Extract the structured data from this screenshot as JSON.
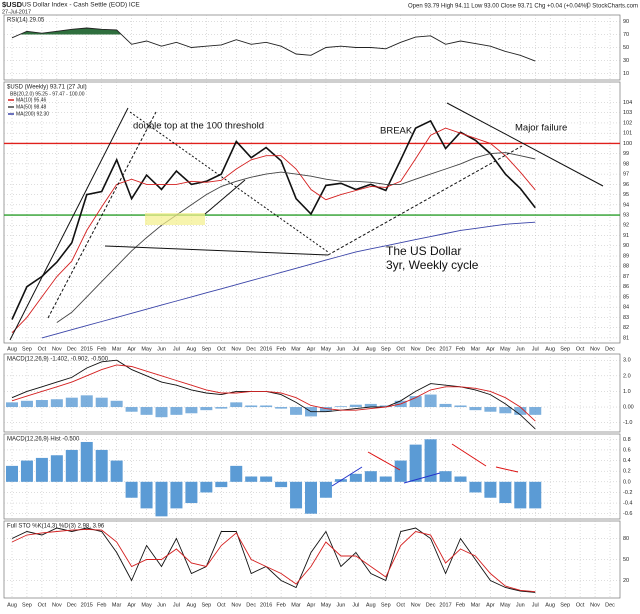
{
  "header": {
    "symbol": "$USD",
    "name": "US Dollar Index - Cash Settle (EOD) ICE",
    "date": "27-Jul-2017",
    "quote": "Open 93.79 High 94.11 Low 93.00 Close 93.71 Chg +0.04 (+0.04%)",
    "credit": "© StockCharts.com"
  },
  "chart_data": [
    {
      "type": "line",
      "title": "RSI(14) 29.05",
      "ylim": [
        0,
        100
      ],
      "yticks": [
        10,
        30,
        50,
        70,
        90
      ],
      "fill_above": 70,
      "fill_color": "#2f6f3e",
      "series": [
        {
          "color": "#222",
          "values": [
            65,
            75,
            72,
            75,
            78,
            80,
            78,
            77,
            55,
            60,
            52,
            58,
            50,
            52,
            54,
            62,
            55,
            58,
            52,
            40,
            38,
            50,
            52,
            50,
            50,
            48,
            58,
            66,
            68,
            55,
            60,
            56,
            52,
            44,
            38,
            29.05,
            null,
            null,
            null,
            null,
            null
          ]
        }
      ]
    },
    {
      "type": "line",
      "title": "$USD (Weekly) 93.71 (27 Jul)",
      "bb_label": "BB(20,2.0) 95.25 - 97.47 - 100.00",
      "ylim": [
        80.5,
        106
      ],
      "yticks": [
        81,
        82,
        83,
        84,
        85,
        86,
        87,
        88,
        89,
        90,
        91,
        92,
        93,
        94,
        95,
        96,
        97,
        98,
        99,
        100,
        101,
        102,
        103,
        104
      ],
      "categories": [
        "Aug",
        "Sep",
        "Oct",
        "Nov",
        "Dec",
        "2015",
        "Feb",
        "Mar",
        "Apr",
        "May",
        "Jun",
        "Jul",
        "Aug",
        "Sep",
        "Oct",
        "Nov",
        "Dec",
        "2016",
        "Feb",
        "Mar",
        "Apr",
        "May",
        "Jun",
        "Jul",
        "Aug",
        "Sep",
        "Oct",
        "Nov",
        "Dec",
        "2017",
        "Feb",
        "Mar",
        "Apr",
        "May",
        "Jun",
        "Jul",
        "Aug",
        "Sep",
        "Oct",
        "Nov",
        "Dec"
      ],
      "hlines": [
        {
          "value": 100,
          "color": "#e0201c"
        },
        {
          "value": 93,
          "color": "#2a9d2a"
        }
      ],
      "annotations": [
        "double top at the 100 threshold",
        "BREAK",
        "Major failure",
        "The US Dollar",
        "3yr, Weekly cycle"
      ],
      "series": [
        {
          "color": "#111",
          "values": [
            82.8,
            86,
            87,
            88.4,
            90.3,
            95,
            95.3,
            98.4,
            94.6,
            96.9,
            95.5,
            97.3,
            96,
            96.3,
            97,
            100.2,
            98.6,
            99.6,
            98.3,
            94.6,
            93.1,
            95.9,
            96.1,
            95.5,
            96,
            95.4,
            98.4,
            101.5,
            102.2,
            99.5,
            101.1,
            100.3,
            99,
            97,
            95.6,
            93.71,
            null,
            null,
            null,
            null,
            null
          ]
        },
        {
          "name": "MA(10) 95.46",
          "color": "#d42020",
          "values": [
            81.5,
            83,
            85,
            87,
            88.5,
            91.5,
            93.8,
            96,
            96.5,
            96,
            96,
            96,
            96.3,
            96.2,
            96.4,
            97.5,
            98.4,
            98.8,
            98.8,
            97.5,
            95.5,
            94.5,
            95,
            95.4,
            95.8,
            95.7,
            96.3,
            98.5,
            100.8,
            101.5,
            101,
            100.5,
            100,
            98.8,
            97.2,
            95.46,
            null,
            null,
            null,
            null,
            null
          ]
        },
        {
          "name": "MA(50) 98.48",
          "color": "#444",
          "values": [
            null,
            null,
            null,
            82.5,
            83.5,
            85,
            86.5,
            88,
            89.5,
            90.8,
            92,
            93,
            94,
            95,
            95.8,
            96.3,
            96.7,
            97,
            97.2,
            97,
            96.8,
            96.5,
            96.3,
            96.3,
            96.2,
            96,
            96,
            96.5,
            97,
            97.5,
            98,
            98.6,
            99,
            99.1,
            98.8,
            98.48,
            null,
            null,
            null,
            null,
            null
          ]
        },
        {
          "name": "MA(200) 92.30",
          "color": "#3a44a8",
          "values": [
            null,
            null,
            81,
            81.4,
            81.8,
            82.2,
            82.6,
            83,
            83.4,
            83.8,
            84.2,
            84.6,
            85,
            85.4,
            85.8,
            86.2,
            86.6,
            87,
            87.4,
            87.8,
            88.2,
            88.6,
            89,
            89.4,
            89.7,
            90,
            90.3,
            90.6,
            90.9,
            91.2,
            91.5,
            91.7,
            91.9,
            92.1,
            92.2,
            92.3,
            null,
            null,
            null,
            null,
            null
          ]
        }
      ]
    },
    {
      "type": "line",
      "title": "MACD(12,26,9) -1.402, -0.902, -0.500",
      "ylim": [
        -1.6,
        3.4
      ],
      "yticks": [
        {
          "value": 3,
          "label": "3.0"
        },
        {
          "value": 2,
          "label": "2.0"
        },
        {
          "value": 1,
          "label": "1.0"
        },
        {
          "value": 0,
          "label": "0.00"
        },
        {
          "value": -1,
          "label": "-1.0"
        }
      ],
      "series": [
        {
          "color": "#111",
          "values": [
            0.6,
            1.0,
            1.3,
            1.6,
            1.9,
            2.5,
            2.9,
            3.0,
            2.4,
            2.0,
            1.6,
            1.4,
            1.1,
            0.9,
            0.8,
            1.0,
            1.0,
            1.0,
            0.8,
            0.3,
            -0.3,
            -0.3,
            -0.2,
            -0.1,
            0.0,
            0.0,
            0.4,
            1.0,
            1.5,
            1.4,
            1.3,
            1.1,
            0.8,
            0.2,
            -0.5,
            -1.402,
            null,
            null,
            null,
            null,
            null
          ]
        },
        {
          "color": "#d42020",
          "values": [
            0.4,
            0.7,
            1.0,
            1.3,
            1.6,
            2.0,
            2.4,
            2.7,
            2.6,
            2.3,
            2.0,
            1.7,
            1.4,
            1.1,
            0.9,
            0.9,
            1.0,
            1.0,
            0.9,
            0.6,
            0.1,
            -0.1,
            -0.2,
            -0.2,
            -0.1,
            0.0,
            0.2,
            0.6,
            1.1,
            1.3,
            1.3,
            1.2,
            1.0,
            0.6,
            0.0,
            -0.902,
            null,
            null,
            null,
            null,
            null
          ]
        }
      ]
    },
    {
      "type": "bar",
      "title": "MACD(12,26,9) Hist -0.500",
      "ylim": [
        -0.7,
        0.9
      ],
      "yticks": [
        0.8,
        0.6,
        0.4,
        0.2,
        {
          "value": 0,
          "label": "0.0"
        },
        -0.2,
        -0.4,
        -0.6
      ],
      "series": [
        {
          "color": "#5b9bd5",
          "values": [
            0.3,
            0.4,
            0.45,
            0.5,
            0.6,
            0.75,
            0.6,
            0.4,
            -0.3,
            -0.5,
            -0.65,
            -0.5,
            -0.4,
            -0.2,
            -0.1,
            0.3,
            0.1,
            0.1,
            -0.1,
            -0.5,
            -0.6,
            -0.3,
            0.05,
            0.15,
            0.2,
            0.1,
            0.4,
            0.7,
            0.8,
            0.2,
            0.1,
            -0.2,
            -0.3,
            -0.4,
            -0.5,
            -0.5,
            null,
            null,
            null,
            null,
            null
          ]
        }
      ]
    },
    {
      "type": "line",
      "title": "Full STO %K(14,3) %D(3) 2.98, 3.96",
      "ylim": [
        -5,
        105
      ],
      "yticks": [
        20,
        50,
        80
      ],
      "categories": [
        "Aug",
        "Sep",
        "Oct",
        "Nov",
        "Dec",
        "2015",
        "Feb",
        "Mar",
        "Apr",
        "May",
        "Jun",
        "Jul",
        "Aug",
        "Sep",
        "Oct",
        "Nov",
        "Dec",
        "2016",
        "Feb",
        "Mar",
        "Apr",
        "May",
        "Jun",
        "Jul",
        "Aug",
        "Sep",
        "Oct",
        "Nov",
        "Dec",
        "2017",
        "Feb",
        "Mar",
        "Apr",
        "May",
        "Jun",
        "Jul",
        "Aug",
        "Sep",
        "Oct",
        "Nov",
        "Dec"
      ],
      "series": [
        {
          "color": "#111",
          "values": [
            80,
            90,
            85,
            95,
            90,
            95,
            90,
            60,
            20,
            70,
            40,
            80,
            30,
            40,
            90,
            90,
            30,
            40,
            20,
            10,
            60,
            90,
            40,
            60,
            30,
            20,
            90,
            95,
            80,
            30,
            80,
            50,
            20,
            10,
            5,
            2.98,
            null,
            null,
            null,
            null,
            null
          ]
        },
        {
          "color": "#d42020",
          "values": [
            75,
            85,
            88,
            90,
            92,
            93,
            92,
            75,
            40,
            50,
            50,
            65,
            45,
            40,
            70,
            88,
            50,
            40,
            30,
            15,
            40,
            75,
            55,
            55,
            40,
            25,
            70,
            90,
            85,
            45,
            65,
            55,
            30,
            12,
            6,
            3.96,
            null,
            null,
            null,
            null,
            null
          ]
        }
      ]
    }
  ]
}
